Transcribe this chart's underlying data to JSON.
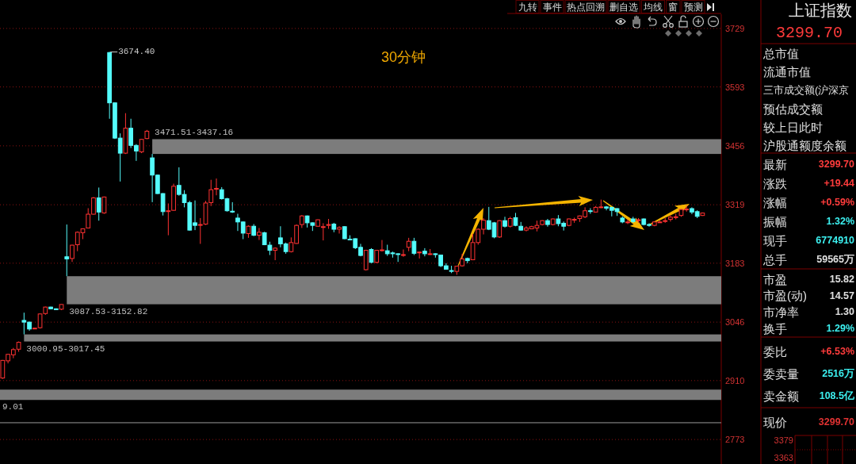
{
  "chart_data": [
    {
      "type": "candlestick",
      "title": "30分钟",
      "categories": [
        null,
        null,
        null,
        null,
        null,
        null,
        null,
        null,
        null,
        null,
        null,
        null,
        null,
        null,
        null,
        null,
        null,
        null,
        null,
        null,
        null,
        null,
        null,
        null,
        null,
        null,
        null,
        null,
        null,
        null,
        null,
        null,
        null,
        null,
        null,
        null,
        null,
        null,
        null,
        null,
        null,
        null,
        null,
        null,
        null,
        null,
        null,
        null,
        null,
        null,
        null,
        null,
        null,
        null,
        null,
        null,
        null,
        null,
        null,
        null,
        null,
        null,
        null,
        null,
        null,
        null,
        null,
        null,
        null,
        null,
        null,
        null,
        null,
        null,
        null,
        null,
        null,
        null,
        null,
        null,
        null,
        null,
        null,
        null,
        null,
        null,
        null,
        null,
        null,
        null,
        null,
        null,
        null,
        null,
        null,
        null,
        null,
        null,
        null,
        null,
        null,
        null,
        null,
        null,
        null,
        null,
        null,
        null,
        null,
        null,
        null,
        null,
        null,
        null,
        null,
        null,
        null,
        null,
        null,
        null,
        null,
        null,
        null,
        null,
        null,
        null,
        null,
        null,
        null,
        null,
        null,
        null,
        null,
        null,
        null
      ],
      "ohlc": [
        [
          2916,
          2958,
          2914,
          2957
        ],
        [
          2956,
          2972,
          2950,
          2971
        ],
        [
          2970,
          2986,
          2962,
          2982
        ],
        [
          2983,
          3000.95,
          2977,
          2999
        ],
        [
          3050,
          3068,
          3017.45,
          3046
        ],
        [
          3046,
          3047,
          3026,
          3030
        ],
        [
          3031,
          3033,
          3030,
          3032
        ],
        [
          3033,
          3066,
          3031,
          3065
        ],
        [
          3066,
          3082,
          3063,
          3081
        ],
        [
          3081,
          3082,
          3076,
          3077
        ],
        [
          3077,
          3078,
          3074,
          3075
        ],
        [
          3076,
          3087.53,
          3074,
          3087
        ],
        [
          3198,
          3273,
          3152.82,
          3193
        ],
        [
          3194,
          3226,
          3186,
          3225
        ],
        [
          3226,
          3257,
          3211,
          3255
        ],
        [
          3254,
          3264,
          3239,
          3263
        ],
        [
          3265,
          3311,
          3264,
          3297
        ],
        [
          3297,
          3337,
          3296,
          3335
        ],
        [
          3335,
          3359,
          3282,
          3302
        ],
        [
          3300,
          3338,
          3298,
          3337
        ],
        [
          3673,
          3674.4,
          3519,
          3556
        ],
        [
          3556,
          3557,
          3472,
          3474
        ],
        [
          3474,
          3485,
          3373,
          3439
        ],
        [
          3439,
          3532,
          3437,
          3497
        ],
        [
          3497,
          3519,
          3451,
          3457
        ],
        [
          3457,
          3460,
          3421,
          3444
        ],
        [
          3442,
          3472,
          3439,
          3471
        ],
        [
          3473,
          3493,
          3471.51,
          3490
        ],
        [
          3428,
          3437.16,
          3325,
          3388
        ],
        [
          3388,
          3389,
          3344,
          3345
        ],
        [
          3345,
          3346,
          3294,
          3303
        ],
        [
          3304,
          3322,
          3248,
          3305
        ],
        [
          3306,
          3368,
          3305,
          3362
        ],
        [
          3364,
          3406,
          3340,
          3343
        ],
        [
          3343,
          3353,
          3313,
          3324
        ],
        [
          3324,
          3328,
          3259,
          3260
        ],
        [
          3277,
          3329,
          3260,
          3271
        ],
        [
          3272,
          3288,
          3228,
          3273
        ],
        [
          3274,
          3328,
          3272,
          3323
        ],
        [
          3324,
          3377,
          3316,
          3354
        ],
        [
          3356,
          3380,
          3341,
          3357
        ],
        [
          3354,
          3360,
          3331,
          3333
        ],
        [
          3333,
          3335,
          3303,
          3305
        ],
        [
          3304,
          3325,
          3300,
          3302
        ],
        [
          3288,
          3298,
          3258,
          3279
        ],
        [
          3279,
          3280,
          3239,
          3253
        ],
        [
          3252,
          3271,
          3242,
          3269
        ],
        [
          3269,
          3274,
          3246,
          3248
        ],
        [
          3248,
          3265,
          3237,
          3255
        ],
        [
          3254,
          3256,
          3225,
          3226
        ],
        [
          3225,
          3233,
          3202,
          3213
        ],
        [
          3213,
          3220,
          3190,
          3218
        ],
        [
          3242,
          3269,
          3220,
          3228
        ],
        [
          3228,
          3231,
          3205,
          3210
        ],
        [
          3210,
          3243,
          3208,
          3231
        ],
        [
          3229,
          3273,
          3228,
          3271
        ],
        [
          3273,
          3295,
          3265,
          3293
        ],
        [
          3293,
          3294,
          3266,
          3277
        ],
        [
          3277,
          3278,
          3258,
          3271
        ],
        [
          3269,
          3285,
          3268,
          3284
        ],
        [
          3267,
          3276,
          3236,
          3268
        ],
        [
          3271,
          3286,
          3263,
          3273
        ],
        [
          3274,
          3277,
          3255,
          3262
        ],
        [
          3262,
          3269,
          3252,
          3266
        ],
        [
          3268,
          3269,
          3239,
          3240
        ],
        [
          3239,
          3248,
          3237,
          3238
        ],
        [
          3240,
          3241,
          3216,
          3219
        ],
        [
          3220,
          3228,
          3199,
          3201
        ],
        [
          3168,
          3214,
          3166,
          3213
        ],
        [
          3215,
          3218,
          3183,
          3185
        ],
        [
          3185,
          3214,
          3183,
          3213
        ],
        [
          3213,
          3237,
          3210,
          3214
        ],
        [
          3212,
          3226,
          3200,
          3205
        ],
        [
          3207,
          3210,
          3196,
          3205
        ],
        [
          3205,
          3206,
          3186,
          3204
        ],
        [
          3202,
          3215,
          3198,
          3203
        ],
        [
          3220,
          3242,
          3211,
          3234
        ],
        [
          3234,
          3242,
          3202,
          3206
        ],
        [
          3208,
          3210,
          3194,
          3209
        ],
        [
          3211,
          3218,
          3199,
          3205
        ],
        [
          3204,
          3216,
          3202,
          3205
        ],
        [
          3205,
          3206,
          3196,
          3203
        ],
        [
          3202,
          3203,
          3174,
          3177
        ],
        [
          3177,
          3183,
          3168,
          3169
        ],
        [
          3166,
          3177,
          3160,
          3164
        ],
        [
          3164,
          3177,
          3156,
          3176
        ],
        [
          3177,
          3205,
          3175,
          3193
        ],
        [
          3194,
          3196,
          3183,
          3189
        ],
        [
          3191,
          3251,
          3190,
          3231
        ],
        [
          3231,
          3264,
          3226,
          3262
        ],
        [
          3262,
          3288,
          3250,
          3283
        ],
        [
          3282,
          3314,
          3260,
          3262
        ],
        [
          3277,
          3279,
          3241,
          3244
        ],
        [
          3244,
          3283,
          3242,
          3282
        ],
        [
          3282,
          3291,
          3266,
          3269
        ],
        [
          3269,
          3291,
          3266,
          3287
        ],
        [
          3289,
          3300,
          3269,
          3271
        ],
        [
          3269,
          3279,
          3259,
          3260
        ],
        [
          3260,
          3269,
          3257,
          3265
        ],
        [
          3263,
          3270,
          3262,
          3268
        ],
        [
          3265,
          3282,
          3257,
          3271
        ],
        [
          3273,
          3283,
          3271,
          3282
        ],
        [
          3282,
          3286,
          3268,
          3273
        ],
        [
          3273,
          3287,
          3271,
          3286
        ],
        [
          3286,
          3295,
          3269,
          3275
        ],
        [
          3276,
          3280,
          3259,
          3269
        ],
        [
          3271,
          3287,
          3269,
          3286
        ],
        [
          3284,
          3289,
          3277,
          3285
        ],
        [
          3287,
          3294,
          3279,
          3293
        ],
        [
          3291,
          3313,
          3288,
          3305
        ],
        [
          3305,
          3311,
          3298,
          3304
        ],
        [
          3302,
          3316,
          3301,
          3313
        ],
        [
          3313,
          3331,
          3311,
          3314
        ],
        [
          3314,
          3316,
          3306,
          3311
        ],
        [
          3313,
          3314,
          3292,
          3306
        ],
        [
          3310,
          3311,
          3293,
          3303
        ],
        [
          3288,
          3292,
          3276,
          3279
        ],
        [
          3278,
          3285,
          3274,
          3279
        ],
        [
          3286,
          3291,
          3277,
          3280
        ],
        [
          3283,
          3288,
          3277,
          3284
        ],
        [
          3286,
          3287,
          3271,
          3273
        ],
        [
          3273,
          3276,
          3268,
          3271
        ],
        [
          3271,
          3280,
          3269,
          3279
        ],
        [
          3278,
          3282,
          3277,
          3279
        ],
        [
          3281,
          3288,
          3277,
          3282
        ],
        [
          3285,
          3294,
          3280,
          3290
        ],
        [
          3290,
          3298,
          3285,
          3291
        ],
        [
          3294,
          3309,
          3291,
          3308
        ],
        [
          3308,
          3317,
          3303,
          3309
        ],
        [
          3310,
          3313,
          3297,
          3302
        ],
        [
          3303,
          3306,
          3288,
          3292
        ],
        [
          3294,
          3301,
          3293,
          3299.7
        ],
        null,
        null,
        null
      ],
      "colors": [
        "#ff3232",
        "#ff3232",
        "#ff3232",
        "#ff3232",
        "#54fcfc",
        "#54fcfc",
        "#ff3232",
        "#ff3232",
        "#ff3232",
        "#54fcfc",
        "#54fcfc",
        "#ff3232",
        "#54fcfc",
        "#ff3232",
        "#ff3232",
        "#ff3232",
        "#ff3232",
        "#ff3232",
        "#54fcfc",
        "#ff3232",
        "#54fcfc",
        "#54fcfc",
        "#54fcfc",
        "#ff3232",
        "#54fcfc",
        "#54fcfc",
        "#ff3232",
        "#ff3232",
        "#54fcfc",
        "#54fcfc",
        "#54fcfc",
        "#ff3232",
        "#ff3232",
        "#54fcfc",
        "#54fcfc",
        "#54fcfc",
        "#54fcfc",
        "#ff3232",
        "#ff3232",
        "#ff3232",
        "#ff3232",
        "#54fcfc",
        "#54fcfc",
        "#54fcfc",
        "#54fcfc",
        "#54fcfc",
        "#ff3232",
        "#54fcfc",
        "#ff3232",
        "#54fcfc",
        "#54fcfc",
        "#ff3232",
        "#54fcfc",
        "#54fcfc",
        "#ff3232",
        "#ff3232",
        "#ff3232",
        "#54fcfc",
        "#54fcfc",
        "#ff3232",
        "#ff3232",
        "#ff3232",
        "#54fcfc",
        "#ff3232",
        "#54fcfc",
        "#54fcfc",
        "#54fcfc",
        "#54fcfc",
        "#ff3232",
        "#54fcfc",
        "#ff3232",
        "#ff3232",
        "#54fcfc",
        "#54fcfc",
        "#54fcfc",
        "#ff3232",
        "#ff3232",
        "#54fcfc",
        "#ff3232",
        "#54fcfc",
        "#ff3232",
        "#54fcfc",
        "#54fcfc",
        "#54fcfc",
        "#54fcfc",
        "#ff3232",
        "#ff3232",
        "#54fcfc",
        "#ff3232",
        "#ff3232",
        "#ff3232",
        "#54fcfc",
        "#54fcfc",
        "#ff3232",
        "#54fcfc",
        "#ff3232",
        "#54fcfc",
        "#54fcfc",
        "#ff3232",
        "#ff3232",
        "#ff3232",
        "#ff3232",
        "#54fcfc",
        "#ff3232",
        "#54fcfc",
        "#54fcfc",
        "#ff3232",
        "#ff3232",
        "#ff3232",
        "#ff3232",
        "#54fcfc",
        "#ff3232",
        "#ff3232",
        "#54fcfc",
        "#54fcfc",
        "#54fcfc",
        "#54fcfc",
        "#ff3232",
        "#54fcfc",
        "#ff3232",
        "#54fcfc",
        "#54fcfc",
        "#ff3232",
        "#ff3232",
        "#ff3232",
        "#ff3232",
        "#ff3232",
        "#ff3232",
        "#ff3232",
        "#54fcfc",
        "#54fcfc",
        "#ff3232",
        null,
        null,
        null
      ],
      "ylim": [
        2716,
        3762
      ],
      "yticks": [
        2773,
        2910,
        3046,
        3183,
        3319,
        3456,
        3593,
        3729
      ],
      "grid": "y",
      "tick_labels": "y",
      "bands": [
        {
          "axis": "y",
          "from": 3437.16,
          "to": 3471.51,
          "label": "3471.51-3437.16",
          "color": "#7c7c7c"
        },
        {
          "axis": "y",
          "from": 3087.53,
          "to": 3152.82,
          "label": "3087.53-3152.82",
          "color": "#7c7c7c"
        },
        {
          "axis": "y",
          "from": 3000.95,
          "to": 3017.45,
          "label": "3000.95-3017.45",
          "color": "#7c7c7c"
        },
        {
          "axis": "y",
          "from": 2865,
          "to": 2889.01,
          "label": "9.01",
          "color": "#7c7c7c"
        }
      ],
      "ref_lines": [
        {
          "axis": "y",
          "value": 2812,
          "color": "#9a9a9a"
        }
      ],
      "annotations": [
        "3674.40",
        "九转",
        "事件",
        "热点回溯",
        "删自选",
        "均线",
        "窗",
        "预测"
      ]
    },
    {
      "type": "other",
      "title": "上证指数",
      "subtitle": "3299.70",
      "categories": [
        "总市值",
        "流通市值",
        "三市成交额(沪深京",
        "预估成交额",
        "较上日此时",
        "沪股通额度余额",
        "最新",
        "涨跌",
        "涨幅",
        "振幅",
        "现手",
        "总手",
        "市盈",
        "市盈(动)",
        "市净率",
        "换手",
        "委比",
        "委卖量",
        "卖金额",
        "现价"
      ],
      "value_labels": [
        null,
        null,
        null,
        null,
        null,
        null,
        "3299.70",
        "+19.44",
        "+0.59%",
        "1.32%",
        "6774910",
        "59565万",
        "15.82",
        "14.57",
        "1.30",
        "1.29%",
        "+6.53%",
        "2516万",
        "108.5亿",
        "3299.70"
      ],
      "colors": [
        null,
        null,
        null,
        null,
        null,
        null,
        "#ff3c3c",
        "#ff3c3c",
        "#ff3c3c",
        "#3cf0f0",
        "#3cf0f0",
        "#e0e0e0",
        "#e0e0e0",
        "#e0e0e0",
        "#e0e0e0",
        "#3cf0f0",
        "#ff3c3c",
        "#3cf0f0",
        "#3cf0f0",
        "#e03232"
      ],
      "annotations": [
        "3379",
        "3363"
      ]
    }
  ]
}
